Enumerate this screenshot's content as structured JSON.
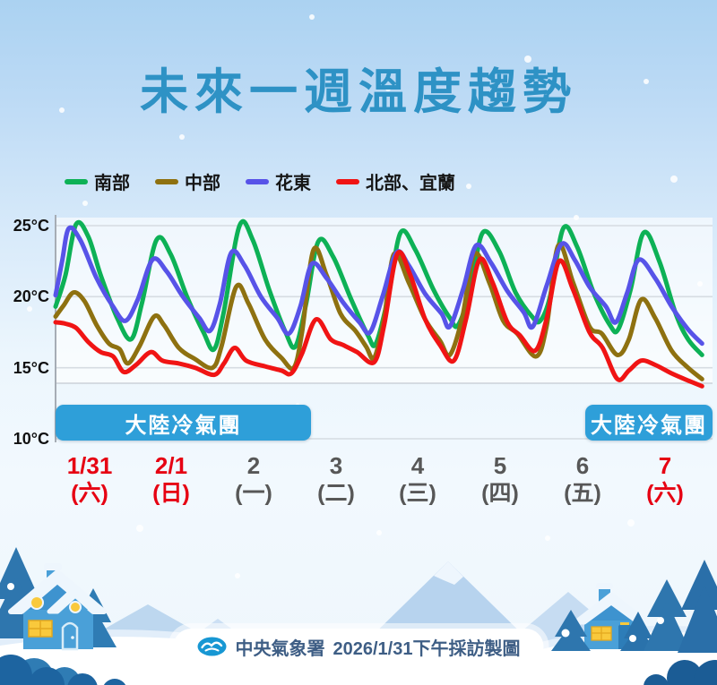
{
  "title": "未來一週溫度趨勢",
  "y_axis": {
    "unit": "°C",
    "ticks": [
      {
        "value": 25,
        "label": "25°C"
      },
      {
        "value": 20,
        "label": "20°C"
      },
      {
        "value": 15,
        "label": "15°C"
      },
      {
        "value": 10,
        "label": "10°C"
      }
    ]
  },
  "x_axis": {
    "days": [
      {
        "date": "1/31",
        "weekday": "(六)",
        "highlight": true
      },
      {
        "date": "2/1",
        "weekday": "(日)",
        "highlight": true
      },
      {
        "date": "2",
        "weekday": "(一)",
        "highlight": false
      },
      {
        "date": "3",
        "weekday": "(二)",
        "highlight": false
      },
      {
        "date": "4",
        "weekday": "(三)",
        "highlight": false
      },
      {
        "date": "5",
        "weekday": "(四)",
        "highlight": false
      },
      {
        "date": "6",
        "weekday": "(五)",
        "highlight": false
      },
      {
        "date": "7",
        "weekday": "(六)",
        "highlight": true
      }
    ],
    "highlight_color": "#e60012",
    "normal_color": "#575757"
  },
  "banners": [
    {
      "position": "left",
      "label": "大陸冷氣團"
    },
    {
      "position": "right",
      "label": "大陸冷氣團"
    }
  ],
  "banner_color": "#2e9fd9",
  "footer": {
    "agency": "中央氣象署",
    "caption": "2026/1/31下午採訪製圖",
    "logo": "cwa-logo-icon"
  },
  "chart_data": {
    "type": "line",
    "title": "未來一週溫度趨勢",
    "x_unit": "days from 1/31 (each day = 1 unit, diurnal cycle per day)",
    "y_unit": "°C",
    "ylim": [
      10,
      25
    ],
    "grid": "horizontal",
    "legend_position": "top-left",
    "series": [
      {
        "key": "south",
        "name": "南部",
        "color": "#0db156",
        "points": [
          [
            0,
            19.3
          ],
          [
            0.12,
            21.5
          ],
          [
            0.25,
            25.1
          ],
          [
            0.4,
            24.2
          ],
          [
            0.55,
            21.5
          ],
          [
            0.75,
            18.5
          ],
          [
            0.92,
            17.0
          ],
          [
            1.05,
            19.5
          ],
          [
            1.23,
            24.0
          ],
          [
            1.4,
            23.0
          ],
          [
            1.6,
            20.0
          ],
          [
            1.8,
            17.5
          ],
          [
            1.93,
            16.3
          ],
          [
            2.05,
            19.0
          ],
          [
            2.24,
            25.0
          ],
          [
            2.4,
            24.0
          ],
          [
            2.6,
            20.5
          ],
          [
            2.8,
            17.5
          ],
          [
            2.92,
            16.5
          ],
          [
            3.05,
            19.5
          ],
          [
            3.2,
            23.9
          ],
          [
            3.38,
            22.8
          ],
          [
            3.6,
            19.8
          ],
          [
            3.8,
            17.3
          ],
          [
            3.9,
            16.7
          ],
          [
            4.05,
            20.0
          ],
          [
            4.2,
            24.5
          ],
          [
            4.38,
            23.3
          ],
          [
            4.6,
            20.5
          ],
          [
            4.8,
            18.5
          ],
          [
            4.9,
            18.0
          ],
          [
            5.05,
            20.5
          ],
          [
            5.2,
            24.5
          ],
          [
            5.4,
            23.2
          ],
          [
            5.6,
            20.3
          ],
          [
            5.8,
            18.6
          ],
          [
            5.9,
            18.3
          ],
          [
            6.02,
            20.0
          ],
          [
            6.18,
            24.8
          ],
          [
            6.35,
            23.5
          ],
          [
            6.55,
            20.3
          ],
          [
            6.75,
            18.0
          ],
          [
            6.85,
            17.7
          ],
          [
            7.0,
            20.5
          ],
          [
            7.16,
            24.5
          ],
          [
            7.35,
            22.5
          ],
          [
            7.55,
            18.8
          ],
          [
            7.7,
            17.0
          ],
          [
            7.87,
            15.9
          ]
        ]
      },
      {
        "key": "central",
        "name": "中部",
        "color": "#8e7110",
        "points": [
          [
            0,
            18.6
          ],
          [
            0.1,
            19.4
          ],
          [
            0.22,
            20.3
          ],
          [
            0.35,
            19.7
          ],
          [
            0.5,
            18.0
          ],
          [
            0.65,
            16.7
          ],
          [
            0.78,
            16.3
          ],
          [
            0.88,
            15.3
          ],
          [
            1.02,
            16.5
          ],
          [
            1.2,
            18.6
          ],
          [
            1.32,
            18.0
          ],
          [
            1.5,
            16.4
          ],
          [
            1.7,
            15.6
          ],
          [
            1.91,
            15.0
          ],
          [
            2.02,
            16.5
          ],
          [
            2.2,
            20.7
          ],
          [
            2.35,
            19.5
          ],
          [
            2.55,
            17.0
          ],
          [
            2.75,
            15.7
          ],
          [
            2.9,
            15.0
          ],
          [
            3.0,
            17.5
          ],
          [
            3.14,
            23.3
          ],
          [
            3.3,
            21.5
          ],
          [
            3.47,
            18.8
          ],
          [
            3.65,
            17.6
          ],
          [
            3.78,
            16.5
          ],
          [
            3.88,
            15.7
          ],
          [
            4.0,
            18.5
          ],
          [
            4.12,
            23.0
          ],
          [
            4.3,
            21.0
          ],
          [
            4.5,
            18.4
          ],
          [
            4.68,
            16.9
          ],
          [
            4.8,
            15.9
          ],
          [
            4.95,
            18.5
          ],
          [
            5.1,
            23.0
          ],
          [
            5.28,
            21.0
          ],
          [
            5.45,
            18.3
          ],
          [
            5.62,
            17.4
          ],
          [
            5.85,
            15.8
          ],
          [
            5.98,
            18.0
          ],
          [
            6.12,
            23.6
          ],
          [
            6.3,
            21.0
          ],
          [
            6.5,
            17.9
          ],
          [
            6.65,
            17.4
          ],
          [
            6.84,
            15.9
          ],
          [
            6.98,
            17.0
          ],
          [
            7.13,
            19.8
          ],
          [
            7.3,
            18.5
          ],
          [
            7.5,
            16.2
          ],
          [
            7.7,
            15.0
          ],
          [
            7.87,
            14.2
          ]
        ]
      },
      {
        "key": "east",
        "name": "花東",
        "color": "#5753e8",
        "points": [
          [
            0,
            20.1
          ],
          [
            0.08,
            22.5
          ],
          [
            0.16,
            24.8
          ],
          [
            0.3,
            24.0
          ],
          [
            0.5,
            21.3
          ],
          [
            0.7,
            19.3
          ],
          [
            0.85,
            18.3
          ],
          [
            1.0,
            19.8
          ],
          [
            1.18,
            22.6
          ],
          [
            1.35,
            21.8
          ],
          [
            1.55,
            20.0
          ],
          [
            1.75,
            18.5
          ],
          [
            1.88,
            17.6
          ],
          [
            2.0,
            19.5
          ],
          [
            2.14,
            23.1
          ],
          [
            2.3,
            22.2
          ],
          [
            2.5,
            20.0
          ],
          [
            2.7,
            18.5
          ],
          [
            2.84,
            17.4
          ],
          [
            2.98,
            19.3
          ],
          [
            3.12,
            22.3
          ],
          [
            3.3,
            21.3
          ],
          [
            3.5,
            19.6
          ],
          [
            3.7,
            18.2
          ],
          [
            3.83,
            17.5
          ],
          [
            3.98,
            20.0
          ],
          [
            4.15,
            23.1
          ],
          [
            4.3,
            22.2
          ],
          [
            4.5,
            20.2
          ],
          [
            4.7,
            18.8
          ],
          [
            4.8,
            17.9
          ],
          [
            4.96,
            20.5
          ],
          [
            5.12,
            23.6
          ],
          [
            5.3,
            22.4
          ],
          [
            5.5,
            20.4
          ],
          [
            5.7,
            18.9
          ],
          [
            5.81,
            17.9
          ],
          [
            5.98,
            20.8
          ],
          [
            6.16,
            23.7
          ],
          [
            6.32,
            22.6
          ],
          [
            6.5,
            20.7
          ],
          [
            6.7,
            19.3
          ],
          [
            6.82,
            18.2
          ],
          [
            6.96,
            20.3
          ],
          [
            7.1,
            22.6
          ],
          [
            7.3,
            21.3
          ],
          [
            7.5,
            19.3
          ],
          [
            7.7,
            17.7
          ],
          [
            7.87,
            16.7
          ]
        ]
      },
      {
        "key": "north-yilan",
        "name": "北部、宜蘭",
        "color": "#f01414",
        "points": [
          [
            0,
            18.2
          ],
          [
            0.12,
            18.1
          ],
          [
            0.25,
            17.8
          ],
          [
            0.4,
            16.8
          ],
          [
            0.55,
            16.1
          ],
          [
            0.7,
            15.8
          ],
          [
            0.83,
            14.7
          ],
          [
            0.98,
            15.2
          ],
          [
            1.16,
            16.1
          ],
          [
            1.3,
            15.5
          ],
          [
            1.5,
            15.3
          ],
          [
            1.7,
            15.0
          ],
          [
            1.93,
            14.5
          ],
          [
            2.05,
            15.3
          ],
          [
            2.18,
            16.4
          ],
          [
            2.32,
            15.5
          ],
          [
            2.55,
            15.1
          ],
          [
            2.75,
            14.8
          ],
          [
            2.87,
            14.6
          ],
          [
            3.0,
            16.0
          ],
          [
            3.17,
            18.4
          ],
          [
            3.35,
            17.0
          ],
          [
            3.5,
            16.6
          ],
          [
            3.67,
            16.1
          ],
          [
            3.88,
            15.4
          ],
          [
            4.0,
            18.0
          ],
          [
            4.16,
            23.0
          ],
          [
            4.32,
            21.5
          ],
          [
            4.5,
            18.4
          ],
          [
            4.68,
            16.6
          ],
          [
            4.85,
            15.5
          ],
          [
            5.0,
            18.5
          ],
          [
            5.16,
            22.6
          ],
          [
            5.32,
            21.0
          ],
          [
            5.5,
            18.2
          ],
          [
            5.65,
            17.3
          ],
          [
            5.84,
            16.2
          ],
          [
            5.98,
            18.5
          ],
          [
            6.13,
            22.5
          ],
          [
            6.3,
            20.5
          ],
          [
            6.5,
            17.5
          ],
          [
            6.66,
            16.4
          ],
          [
            6.84,
            14.2
          ],
          [
            6.98,
            14.8
          ],
          [
            7.13,
            15.5
          ],
          [
            7.3,
            15.2
          ],
          [
            7.5,
            14.6
          ],
          [
            7.7,
            14.1
          ],
          [
            7.87,
            13.7
          ]
        ]
      }
    ],
    "annotations": [
      "大陸冷氣團 (left span)",
      "大陸冷氣團 (right span)"
    ]
  }
}
